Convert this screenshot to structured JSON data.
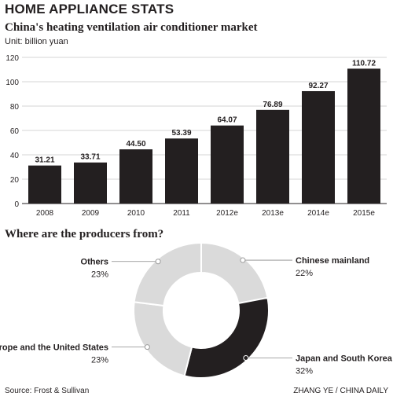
{
  "header": {
    "title": "HOME APPLIANCE STATS"
  },
  "source": "Source: Frost & Sullivan",
  "credit": "ZHANG YE / CHINA DAILY",
  "colors": {
    "bar": "#231f20",
    "grid": "#c8c8c8",
    "donut_light": "#dadada",
    "donut_dark": "#231f20"
  },
  "chart_data": [
    {
      "type": "bar",
      "title": "China's heating ventilation air conditioner market",
      "unit": "Unit: billion yuan",
      "categories": [
        "2008",
        "2009",
        "2010",
        "2011",
        "2012e",
        "2013e",
        "2014e",
        "2015e"
      ],
      "values": [
        31.21,
        33.71,
        44.5,
        53.39,
        64.07,
        76.89,
        92.27,
        110.72
      ],
      "value_labels": [
        "31.21",
        "33.71",
        "44.50",
        "53.39",
        "64.07",
        "76.89",
        "92.27",
        "110.72"
      ],
      "yticks": [
        0,
        20,
        40,
        60,
        80,
        100,
        120
      ],
      "ylim": [
        0,
        120
      ],
      "grid": true
    },
    {
      "type": "pie",
      "variant": "donut",
      "title": "Where are the producers from?",
      "slices": [
        {
          "label": "Chinese mainland",
          "value": 22,
          "pct_label": "22%",
          "color": "#dadada",
          "side": "right"
        },
        {
          "label": "Japan and South Korea",
          "value": 32,
          "pct_label": "32%",
          "color": "#231f20",
          "side": "right"
        },
        {
          "label": "Europe and the United States",
          "value": 23,
          "pct_label": "23%",
          "color": "#dadada",
          "side": "left"
        },
        {
          "label": "Others",
          "value": 23,
          "pct_label": "23%",
          "color": "#dadada",
          "side": "left"
        }
      ]
    }
  ]
}
